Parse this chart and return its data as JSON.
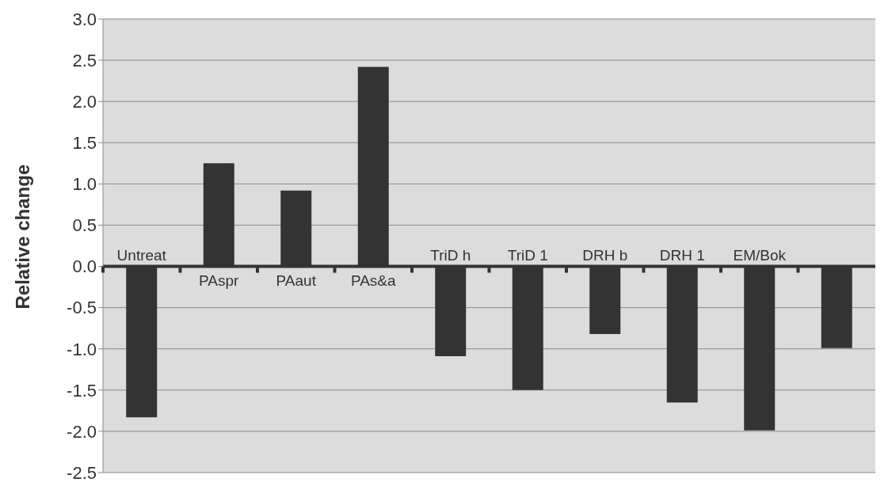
{
  "chart_data": {
    "type": "bar",
    "ylabel": "Relative change",
    "categories": [
      "Untreat",
      "PAspr",
      "PAaut",
      "PAs&a",
      "TriD h",
      "TriD 1",
      "DRH b",
      "DRH 1",
      "EM/Bok",
      null
    ],
    "values": [
      -1.83,
      1.25,
      0.92,
      2.42,
      -1.09,
      -1.5,
      -0.82,
      -1.65,
      -1.99,
      -0.99
    ],
    "color": "#333333",
    "ylim": [
      -2.5,
      3.0
    ],
    "yticks": [
      {
        "value": -2.5,
        "label": "-2.5"
      },
      {
        "value": -2.0,
        "label": "-2.0"
      },
      {
        "value": -1.5,
        "label": "-1.5"
      },
      {
        "value": -1.0,
        "label": "-1.0"
      },
      {
        "value": -0.5,
        "label": "-0.5"
      },
      {
        "value": 0,
        "label": "0.0"
      },
      {
        "value": 0.5,
        "label": "0.5"
      },
      {
        "value": 1.0,
        "label": "1.0"
      },
      {
        "value": 1.5,
        "label": "1.5"
      },
      {
        "value": 2.0,
        "label": "2.0"
      },
      {
        "value": 2.5,
        "label": "2.5"
      },
      {
        "value": 3.0,
        "label": "3.0"
      }
    ],
    "grid": "y"
  }
}
